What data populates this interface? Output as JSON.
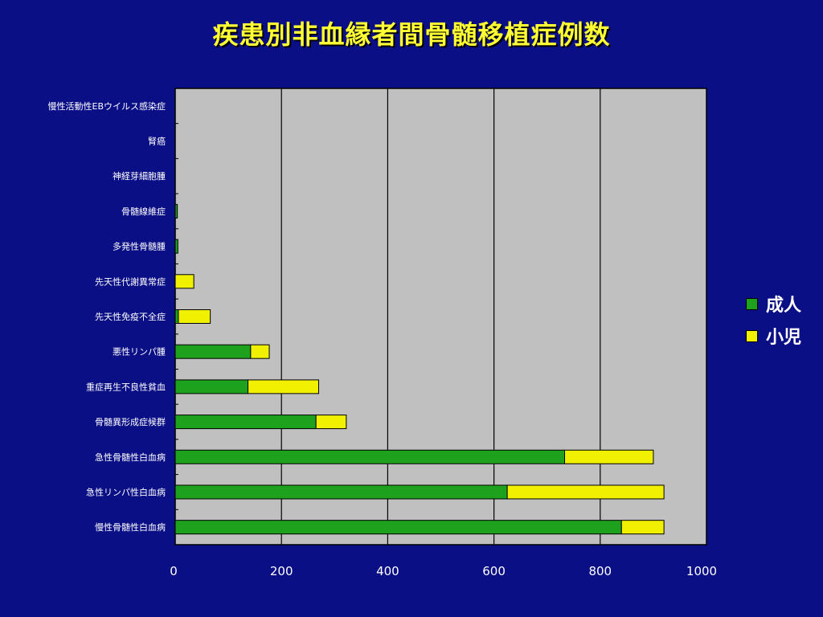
{
  "chart_data": {
    "type": "bar",
    "orientation": "horizontal",
    "stacked": true,
    "title": "疾患別非血縁者間骨髄移植症例数",
    "categories": [
      "慢性骨髄性白血病",
      "急性リンパ性白血病",
      "急性骨髄性白血病",
      "骨髄異形成症候群",
      "重症再生不良性貧血",
      "悪性リンパ腫",
      "先天性免疫不全症",
      "先天性代謝異常症",
      "多発性骨髄腫",
      "骨髄線維症",
      "神経芽細胞腫",
      "腎癌",
      "慢性活動性EBウイルス感染症"
    ],
    "series": [
      {
        "name": "成人",
        "color": "#1ea21e",
        "values": [
          840,
          625,
          733,
          265,
          137,
          142,
          6,
          0,
          5,
          4,
          0,
          0,
          0
        ]
      },
      {
        "name": "小児",
        "color": "#f0f000",
        "values": [
          80,
          295,
          167,
          57,
          133,
          35,
          60,
          35,
          0,
          0,
          0,
          0,
          0
        ]
      }
    ],
    "xlim": [
      0,
      1000
    ],
    "xticks": [
      0,
      200,
      400,
      600,
      800,
      1000
    ],
    "grid": true,
    "legend": "right"
  }
}
